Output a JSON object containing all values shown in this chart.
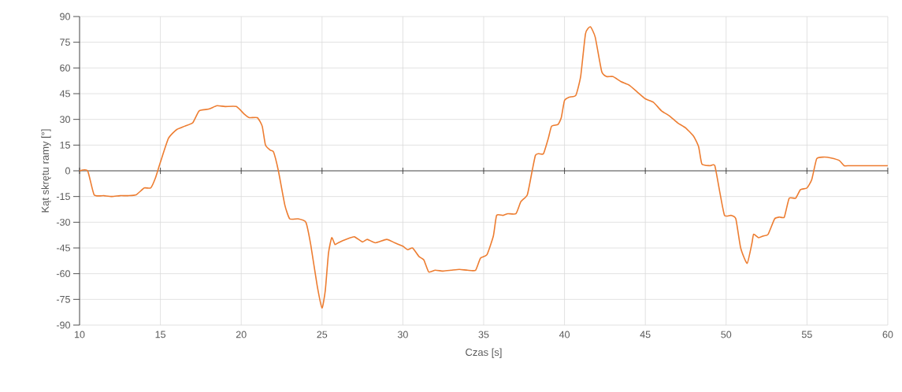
{
  "chart_data": {
    "type": "line",
    "xlabel": "Czas [s]",
    "ylabel": "Kąt skrętu ramy [°]",
    "xlim": [
      10,
      60
    ],
    "xticks": [
      10,
      15,
      20,
      25,
      30,
      35,
      40,
      45,
      50,
      55,
      60
    ],
    "ylim": [
      -90,
      90
    ],
    "yticks": [
      -90,
      -75,
      -60,
      -45,
      -30,
      -15,
      0,
      15,
      30,
      45,
      60,
      75,
      90
    ],
    "grid": true,
    "marker": "none",
    "line_style": "solid",
    "series": [
      {
        "color": "#ed7d31",
        "x": [
          10.0,
          10.5,
          10.9,
          11.5,
          12,
          12.5,
          13,
          13.5,
          14,
          14.4,
          14.7,
          15,
          15.5,
          16,
          16.5,
          17,
          17.4,
          18,
          18.5,
          19,
          19.7,
          20.2,
          20.5,
          21,
          21.3,
          21.5,
          21.8,
          22,
          22.3,
          22.7,
          23,
          23.5,
          24,
          24.3,
          24.7,
          25,
          25.2,
          25.4,
          25.6,
          25.8,
          26,
          26.5,
          27,
          27.5,
          27.8,
          28.3,
          29,
          29.5,
          30,
          30.3,
          30.6,
          31,
          31.3,
          31.6,
          32,
          32.5,
          33,
          33.5,
          34,
          34.5,
          34.8,
          35.2,
          35.6,
          35.8,
          36.2,
          36.5,
          37,
          37.3,
          37.7,
          38,
          38.2,
          38.4,
          38.7,
          39,
          39.2,
          39.6,
          39.8,
          40,
          40.3,
          40.7,
          41,
          41.3,
          41.6,
          41.9,
          42.3,
          42.6,
          43,
          43.5,
          44,
          44.5,
          45,
          45.5,
          46,
          46.5,
          47,
          47.5,
          48,
          48.3,
          48.5,
          49,
          49.3,
          49.6,
          49.9,
          50.3,
          50.6,
          50.9,
          51.3,
          51.6,
          51.7,
          52,
          52.3,
          52.6,
          53,
          53.3,
          53.6,
          53.9,
          54.3,
          54.6,
          55,
          55.3,
          55.6,
          56,
          56.5,
          57,
          57.3,
          57.6,
          58,
          60
        ],
        "values": [
          0,
          0,
          -14,
          -14.5,
          -15,
          -14.5,
          -14.5,
          -14,
          -10,
          -10,
          -4,
          5,
          19,
          24,
          26,
          28,
          35,
          36,
          38,
          37.5,
          37.5,
          33,
          31,
          31,
          26,
          15,
          12,
          11,
          0,
          -20,
          -28,
          -28,
          -30,
          -43,
          -67,
          -80,
          -70,
          -48,
          -39,
          -43,
          -42,
          -40,
          -38.5,
          -41.5,
          -40,
          -42,
          -40,
          -42,
          -44,
          -46,
          -45,
          -50,
          -52,
          -59,
          -58,
          -58.5,
          -58,
          -57.5,
          -58,
          -58,
          -51,
          -49,
          -38,
          -26,
          -26,
          -25,
          -25,
          -18,
          -14,
          0,
          9,
          10,
          10,
          19,
          26,
          27,
          31,
          41,
          43,
          44,
          55,
          80,
          84,
          78,
          58,
          55,
          55,
          52,
          50,
          46,
          42,
          40,
          35,
          32,
          28,
          25,
          20,
          14,
          4,
          3,
          3,
          -12,
          -26,
          -26,
          -28,
          -45,
          -54,
          -42,
          -37,
          -39,
          -38,
          -37,
          -28,
          -27,
          -27,
          -16,
          -16,
          -11,
          -10,
          -5,
          7,
          8,
          7.5,
          6,
          3,
          3,
          3,
          3
        ]
      }
    ]
  }
}
